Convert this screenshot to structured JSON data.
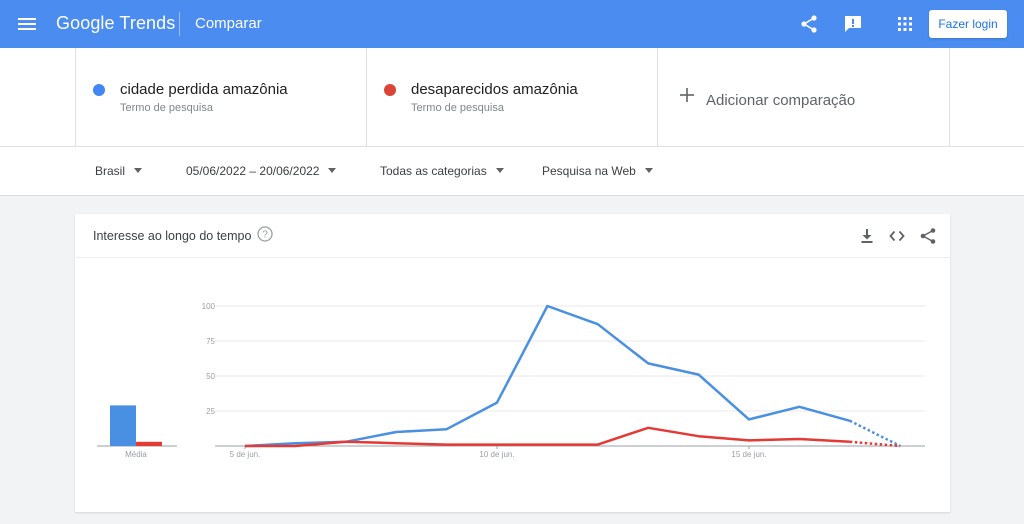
{
  "header": {
    "brand": "Google Trends",
    "page_title": "Comparar",
    "login_label": "Fazer login",
    "icons": [
      "menu-icon",
      "share-icon",
      "feedback-icon",
      "apps-icon"
    ],
    "bar_color": "#4a8cf0"
  },
  "terms": [
    {
      "name": "cidade perdida amazônia",
      "subtitle": "Termo de pesquisa",
      "color": "#4285f4"
    },
    {
      "name": "desaparecidos amazônia",
      "subtitle": "Termo de pesquisa",
      "color": "#db4437"
    }
  ],
  "add_comparison": {
    "label": "Adicionar comparação"
  },
  "filters": {
    "region": "Brasil",
    "date_range": "05/06/2022 – 20/06/2022",
    "category": "Todas as categorias",
    "search_type": "Pesquisa na Web"
  },
  "card": {
    "title": "Interesse ao longo do tempo",
    "icons": [
      "help-icon",
      "download-icon",
      "embed-icon",
      "share-icon"
    ]
  },
  "chart_data": {
    "type": "line",
    "x": [
      "05/06",
      "06/06",
      "07/06",
      "08/06",
      "09/06",
      "10/06",
      "11/06",
      "12/06",
      "13/06",
      "14/06",
      "15/06",
      "16/06",
      "17/06",
      "18/06"
    ],
    "x_tick_labels": [
      {
        "x": "05/06",
        "label": "5 de jun."
      },
      {
        "x": "10/06",
        "label": "10 de jun."
      },
      {
        "x": "15/06",
        "label": "15 de jun."
      }
    ],
    "y_ticks": [
      25,
      50,
      75,
      100
    ],
    "ylim": [
      0,
      100
    ],
    "grid": true,
    "partial_last_point": true,
    "series": [
      {
        "color": "#4a90e2",
        "values": [
          0,
          2,
          3,
          10,
          12,
          31,
          100,
          87,
          59,
          51,
          19,
          28,
          18,
          0
        ]
      },
      {
        "color": "#e53935",
        "values": [
          0,
          0,
          3,
          2,
          1,
          1,
          1,
          1,
          13,
          7,
          4,
          5,
          3,
          0
        ]
      }
    ],
    "average": {
      "label": "Média",
      "values": [
        29,
        3
      ],
      "colors": [
        "#4a90e2",
        "#e53935"
      ]
    }
  }
}
